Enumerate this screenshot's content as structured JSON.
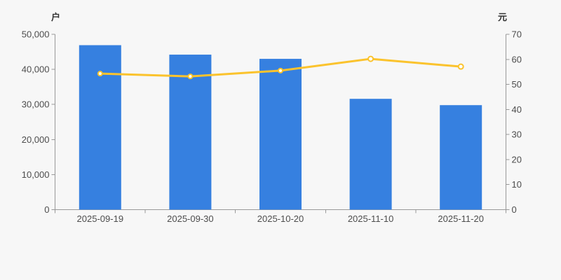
{
  "page": {
    "background": "#f7f7f7"
  },
  "chart_data": {
    "type": "bar",
    "subtype": "bar+line combo, dual y-axis",
    "title": "",
    "categories": [
      "2025-09-19",
      "2025-09-30",
      "2025-10-20",
      "2025-11-10",
      "2025-11-20"
    ],
    "series": [
      {
        "id": "bar-series",
        "type": "bar",
        "y_axis": "left",
        "color": "#3680e0",
        "values": [
          46900,
          44200,
          43000,
          31600,
          29800
        ]
      },
      {
        "id": "line-series",
        "type": "line",
        "y_axis": "right",
        "color": "#fbc32d",
        "marker_fill": "#ffffff",
        "values": [
          54.3,
          53.2,
          55.5,
          60.2,
          57.1
        ]
      }
    ],
    "left_axis": {
      "title": "户",
      "min": 0,
      "max": 50000,
      "tick_labels": [
        "0",
        "10,000",
        "20,000",
        "30,000",
        "40,000",
        "50,000"
      ]
    },
    "right_axis": {
      "title": "元",
      "min": 0,
      "max": 70,
      "tick_labels": [
        "0",
        "10",
        "20",
        "30",
        "40",
        "50",
        "60",
        "70"
      ]
    },
    "legend": {
      "visible": false,
      "entries": []
    },
    "grid": false,
    "style": {
      "axis_line_color": "#999999",
      "tick_text_color": "#4d4d4d",
      "axis_title_color": "#333333"
    }
  }
}
